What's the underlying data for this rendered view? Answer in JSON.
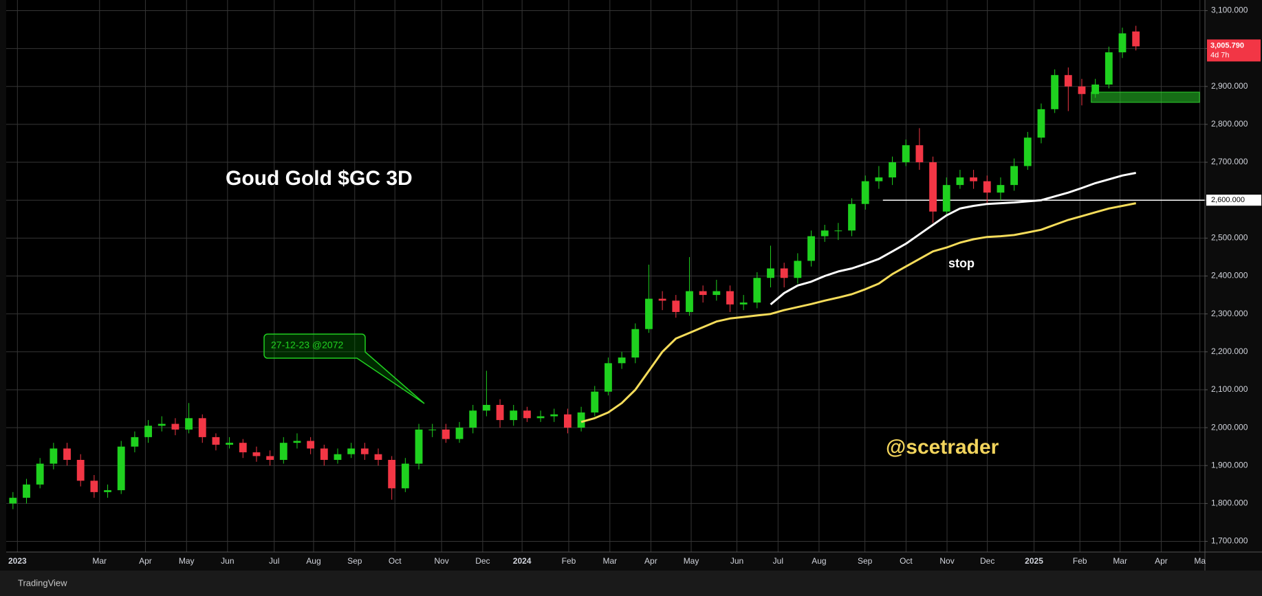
{
  "chart_data": {
    "type": "candlestick",
    "title": "Goud Gold $GC 3D",
    "open": [
      1800,
      1815,
      1850,
      1905,
      1945,
      1915,
      1860,
      1830,
      1835,
      1950,
      1975,
      2005,
      2010,
      1995,
      2025,
      1975,
      1955,
      1960,
      1935,
      1925,
      1915,
      1960,
      1965,
      1945,
      1915,
      1930,
      1945,
      1930,
      1915,
      1840,
      1905,
      1995,
      1995,
      1970,
      2000,
      2045,
      2060,
      2020,
      2045,
      2025,
      2030,
      2035,
      2000,
      2040,
      2095,
      2170,
      2185,
      2260,
      2340,
      2335,
      2305,
      2360,
      2350,
      2360,
      2325,
      2330,
      2395,
      2420,
      2395,
      2440,
      2505,
      2520,
      2520,
      2590,
      2650,
      2660,
      2700,
      2745,
      2700,
      2570,
      2640,
      2660,
      2650,
      2620,
      2640,
      2690,
      2765,
      2840,
      2930,
      2900,
      2880,
      2905,
      2990,
      3045
    ],
    "high": [
      1830,
      1865,
      1920,
      1960,
      1960,
      1930,
      1875,
      1850,
      1965,
      1990,
      2020,
      2030,
      2025,
      2065,
      2035,
      1985,
      1975,
      1970,
      1950,
      1940,
      1975,
      1985,
      1975,
      1955,
      1945,
      1960,
      1960,
      1945,
      1925,
      1920,
      2010,
      2010,
      2010,
      2015,
      2060,
      2150,
      2075,
      2060,
      2055,
      2045,
      2050,
      2050,
      2055,
      2110,
      2185,
      2200,
      2275,
      2430,
      2360,
      2350,
      2450,
      2375,
      2390,
      2375,
      2350,
      2410,
      2480,
      2435,
      2460,
      2520,
      2535,
      2540,
      2605,
      2665,
      2690,
      2715,
      2760,
      2790,
      2715,
      2660,
      2680,
      2680,
      2665,
      2660,
      2710,
      2780,
      2855,
      2945,
      2950,
      2920,
      2920,
      3005,
      3055,
      3060
    ],
    "low": [
      1785,
      1800,
      1840,
      1890,
      1900,
      1845,
      1815,
      1815,
      1825,
      1935,
      1960,
      1990,
      1980,
      1985,
      1960,
      1940,
      1945,
      1920,
      1910,
      1900,
      1905,
      1945,
      1930,
      1900,
      1905,
      1920,
      1915,
      1900,
      1810,
      1830,
      1890,
      1975,
      1960,
      1960,
      1985,
      2030,
      2000,
      2005,
      2015,
      2015,
      2015,
      1985,
      1990,
      2030,
      2085,
      2155,
      2170,
      2250,
      2310,
      2290,
      2295,
      2330,
      2335,
      2305,
      2310,
      2315,
      2370,
      2370,
      2380,
      2425,
      2490,
      2495,
      2505,
      2575,
      2630,
      2640,
      2690,
      2680,
      2540,
      2560,
      2630,
      2630,
      2590,
      2600,
      2625,
      2680,
      2750,
      2830,
      2835,
      2850,
      2870,
      2895,
      2975,
      2995
    ],
    "close": [
      1815,
      1850,
      1905,
      1945,
      1915,
      1860,
      1830,
      1835,
      1950,
      1975,
      2005,
      2010,
      1995,
      2025,
      1975,
      1955,
      1960,
      1935,
      1925,
      1915,
      1960,
      1965,
      1945,
      1915,
      1930,
      1945,
      1930,
      1915,
      1840,
      1905,
      1995,
      1995,
      1970,
      2000,
      2045,
      2060,
      2020,
      2045,
      2025,
      2030,
      2035,
      2000,
      2040,
      2095,
      2170,
      2185,
      2260,
      2340,
      2335,
      2305,
      2360,
      2350,
      2360,
      2325,
      2330,
      2395,
      2420,
      2395,
      2440,
      2505,
      2520,
      2520,
      2590,
      2650,
      2660,
      2700,
      2745,
      2700,
      2570,
      2640,
      2660,
      2650,
      2620,
      2640,
      2690,
      2765,
      2840,
      2930,
      2900,
      2880,
      2905,
      2990,
      3040,
      3005.79
    ],
    "up_color": "#1fd11f",
    "down_color": "#f23645",
    "lines": [
      {
        "color": "#f5dc5a",
        "values": [
          null,
          null,
          null,
          null,
          null,
          null,
          null,
          null,
          null,
          null,
          null,
          null,
          null,
          null,
          null,
          null,
          null,
          null,
          null,
          null,
          null,
          null,
          null,
          null,
          null,
          null,
          null,
          null,
          null,
          null,
          null,
          null,
          null,
          null,
          null,
          null,
          null,
          null,
          null,
          null,
          null,
          null,
          2015,
          2025,
          2040,
          2065,
          2100,
          2150,
          2200,
          2235,
          2250,
          2265,
          2280,
          2288,
          2292,
          2296,
          2300,
          2310,
          2318,
          2326,
          2335,
          2343,
          2352,
          2365,
          2380,
          2405,
          2425,
          2445,
          2465,
          2475,
          2488,
          2497,
          2503,
          2505,
          2508,
          2515,
          2522,
          2535,
          2548,
          2558,
          2568,
          2578,
          2585,
          2592
        ]
      },
      {
        "color": "#ffffff",
        "values": [
          null,
          null,
          null,
          null,
          null,
          null,
          null,
          null,
          null,
          null,
          null,
          null,
          null,
          null,
          null,
          null,
          null,
          null,
          null,
          null,
          null,
          null,
          null,
          null,
          null,
          null,
          null,
          null,
          null,
          null,
          null,
          null,
          null,
          null,
          null,
          null,
          null,
          null,
          null,
          null,
          null,
          null,
          null,
          null,
          null,
          null,
          null,
          null,
          null,
          null,
          null,
          null,
          null,
          null,
          null,
          null,
          2325,
          2355,
          2375,
          2385,
          2400,
          2412,
          2420,
          2432,
          2445,
          2465,
          2485,
          2510,
          2535,
          2560,
          2578,
          2585,
          2590,
          2592,
          2594,
          2597,
          2600,
          2610,
          2620,
          2632,
          2645,
          2655,
          2665,
          2672
        ]
      }
    ],
    "hline": {
      "value": 2600,
      "label": "2,600.000"
    },
    "zone": [
      2858,
      2885
    ],
    "last_price": {
      "value": 3005.79,
      "label": "3,005.790",
      "countdown": "4d 7h"
    },
    "annotations": {
      "callout": "27-12-23 @2072",
      "stop": "stop",
      "handle": "@scetrader"
    },
    "watermark": "TradingView",
    "grid": true,
    "xlim": [
      0,
      88.6
    ],
    "xticks": [
      {
        "value": 0.83,
        "label": "2023"
      },
      {
        "value": 6.9,
        "label": "Mar"
      },
      {
        "value": 10.29,
        "label": "Apr"
      },
      {
        "value": 13.33,
        "label": "May"
      },
      {
        "value": 16.36,
        "label": "Jun"
      },
      {
        "value": 19.81,
        "label": "Jul"
      },
      {
        "value": 22.72,
        "label": "Aug"
      },
      {
        "value": 25.76,
        "label": "Sep"
      },
      {
        "value": 28.73,
        "label": "Oct"
      },
      {
        "value": 32.18,
        "label": "Nov"
      },
      {
        "value": 35.22,
        "label": "Dec"
      },
      {
        "value": 38.13,
        "label": "2024"
      },
      {
        "value": 41.58,
        "label": "Feb"
      },
      {
        "value": 44.62,
        "label": "Mar"
      },
      {
        "value": 47.65,
        "label": "Apr"
      },
      {
        "value": 50.63,
        "label": "May"
      },
      {
        "value": 54.01,
        "label": "Jun"
      },
      {
        "value": 57.05,
        "label": "Jul"
      },
      {
        "value": 60.08,
        "label": "Aug"
      },
      {
        "value": 63.47,
        "label": "Sep"
      },
      {
        "value": 66.51,
        "label": "Oct"
      },
      {
        "value": 69.54,
        "label": "Nov"
      },
      {
        "value": 72.52,
        "label": "Dec"
      },
      {
        "value": 75.97,
        "label": "2025"
      },
      {
        "value": 79.36,
        "label": "Feb"
      },
      {
        "value": 82.33,
        "label": "Mar"
      },
      {
        "value": 85.37,
        "label": "Apr"
      },
      {
        "value": 88.23,
        "label": "Ma"
      }
    ],
    "ylim": [
      1672,
      3128
    ],
    "yticks": [
      {
        "value": 1700,
        "label": "1,700.000"
      },
      {
        "value": 1800,
        "label": "1,800.000"
      },
      {
        "value": 1900,
        "label": "1,900.000"
      },
      {
        "value": 2000,
        "label": "2,000.000"
      },
      {
        "value": 2100,
        "label": "2,100.000"
      },
      {
        "value": 2200,
        "label": "2,200.000"
      },
      {
        "value": 2300,
        "label": "2,300.000"
      },
      {
        "value": 2400,
        "label": "2,400.000"
      },
      {
        "value": 2500,
        "label": "2,500.000"
      },
      {
        "value": 2600,
        "label": "2,600.000"
      },
      {
        "value": 2700,
        "label": "2,700.000"
      },
      {
        "value": 2800,
        "label": "2,800.000"
      },
      {
        "value": 2900,
        "label": "2,900.000"
      },
      {
        "value": 3000,
        "label": "3,000.000"
      },
      {
        "value": 3100,
        "label": "3,100.000"
      }
    ]
  }
}
